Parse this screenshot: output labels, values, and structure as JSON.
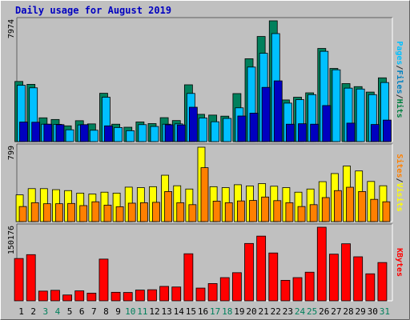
{
  "chart_data": {
    "type": "bar",
    "title": "Daily usage for August 2019",
    "categories": [
      "1",
      "2",
      "3",
      "4",
      "5",
      "6",
      "7",
      "8",
      "9",
      "10",
      "11",
      "12",
      "13",
      "14",
      "15",
      "16",
      "17",
      "18",
      "19",
      "20",
      "21",
      "22",
      "23",
      "24",
      "25",
      "26",
      "27",
      "28",
      "29",
      "30",
      "31"
    ],
    "weekend_days": [
      "3",
      "4",
      "10",
      "11",
      "17",
      "18",
      "24",
      "25",
      "31"
    ],
    "panels": [
      {
        "id": "top",
        "ymax_label": "7974",
        "ylim": [
          0,
          7974
        ],
        "right_label": [
          "Pages",
          "/",
          "Files",
          "/",
          "Hits"
        ],
        "right_label_colors": [
          "#00c0ff",
          "#303030",
          "#0080c0",
          "#303030",
          "#008040"
        ],
        "series": [
          {
            "name": "Hits",
            "color": "#00805c",
            "values": [
              3970,
              3780,
              1570,
              1460,
              1040,
              1380,
              1170,
              3190,
              1150,
              950,
              1300,
              1190,
              1580,
              1390,
              3750,
              1800,
              1750,
              1680,
              3170,
              5470,
              6940,
              7974,
              2750,
              2930,
              3220,
              6150,
              4830,
              3830,
              3630,
              3270,
              4210
            ]
          },
          {
            "name": "Files",
            "color": "#00c0ff",
            "values": [
              3720,
              3550,
              1150,
              1140,
              780,
              1100,
              750,
              2930,
              930,
              720,
              1120,
              1000,
              1150,
              1170,
              3180,
              1560,
              1310,
              1530,
              2230,
              4920,
              5830,
              7130,
              2540,
              2770,
              3100,
              5960,
              4740,
              3530,
              3470,
              3100,
              3900
            ]
          },
          {
            "name": "Pages",
            "color": "#0000c0",
            "values": [
              1290,
              1280,
              1150,
              1120,
              0,
              1120,
              0,
              1040,
              0,
              0,
              0,
              0,
              1110,
              1100,
              2270,
              0,
              0,
              0,
              1690,
              1880,
              3580,
              4010,
              1150,
              1180,
              1150,
              2380,
              0,
              1220,
              0,
              1130,
              1420
            ]
          }
        ]
      },
      {
        "id": "mid",
        "ymax_label": "799",
        "ylim": [
          0,
          799
        ],
        "right_label": [
          "Sites",
          "/",
          "Visits"
        ],
        "right_label_colors": [
          "#ff8000",
          "#303030",
          "#ffff00"
        ],
        "series": [
          {
            "name": "Visits",
            "color": "#ffff00",
            "values": [
              287,
              354,
              354,
              343,
              333,
              306,
              296,
              316,
              306,
              370,
              365,
              375,
              498,
              385,
              350,
              799,
              375,
              365,
              396,
              383,
              408,
              380,
              365,
              316,
              350,
              429,
              516,
              597,
              544,
              431,
              385
            ]
          },
          {
            "name": "Sites",
            "color": "#ff8000",
            "values": [
              162,
              203,
              192,
              192,
              195,
              172,
              213,
              177,
              160,
              198,
              203,
              207,
              323,
              203,
              182,
              579,
              220,
              203,
              222,
              227,
              264,
              225,
              203,
              162,
              182,
              258,
              333,
              369,
              323,
              239,
              213
            ]
          }
        ]
      },
      {
        "id": "bottom",
        "ymax_label": "150176",
        "ylim": [
          0,
          150176
        ],
        "right_label": [
          "KBytes"
        ],
        "right_label_colors": [
          "#ff0000"
        ],
        "series": [
          {
            "name": "KBytes",
            "color": "#ff0000",
            "values": [
              86300,
              94200,
              19800,
              21400,
              11900,
              20300,
              15600,
              85100,
              17400,
              17000,
              21900,
              22600,
              29400,
              28200,
              96000,
              26000,
              35200,
              47300,
              57400,
              117000,
              132000,
              97600,
              41800,
              47300,
              58400,
              150176,
              95200,
              116400,
              89800,
              55100,
              78100
            ]
          }
        ]
      }
    ]
  }
}
